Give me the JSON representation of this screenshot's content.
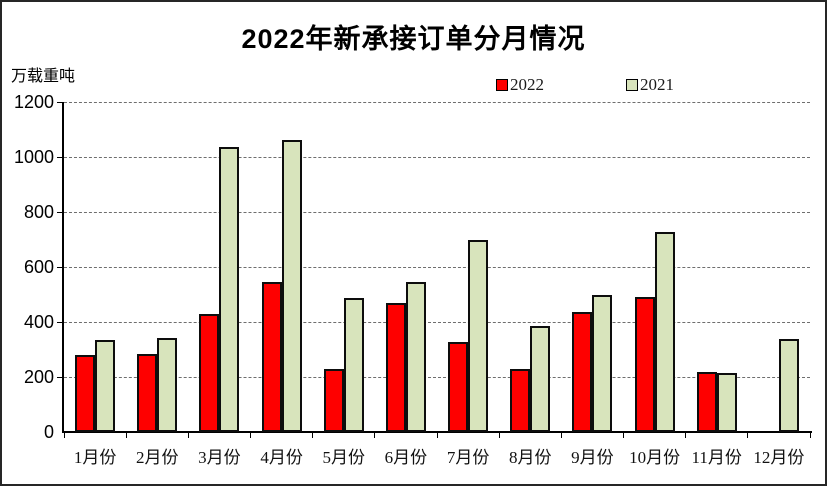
{
  "chart_data": {
    "type": "bar",
    "title": "2022年新承接订单分月情况",
    "ylabel_unit": "万载重吨",
    "categories": [
      "1月份",
      "2月份",
      "3月份",
      "4月份",
      "5月份",
      "6月份",
      "7月份",
      "8月份",
      "9月份",
      "10月份",
      "11月份",
      "12月份"
    ],
    "series": [
      {
        "name": "2022",
        "color": "#fe0000",
        "values": [
          280,
          282,
          430,
          546,
          228,
          470,
          326,
          230,
          435,
          491,
          219,
          null
        ]
      },
      {
        "name": "2021",
        "color": "#d8e4bc",
        "values": [
          335,
          341,
          1036,
          1062,
          486,
          546,
          698,
          387,
          498,
          728,
          216,
          338
        ]
      }
    ],
    "ylim": [
      0,
      1200
    ],
    "yticks": [
      0,
      200,
      400,
      600,
      800,
      1000,
      1200
    ],
    "grid": "horizontal-dashed",
    "legend_position": "top-center",
    "gridline_color": "#6e6e6e",
    "axis_color": "#000000"
  }
}
